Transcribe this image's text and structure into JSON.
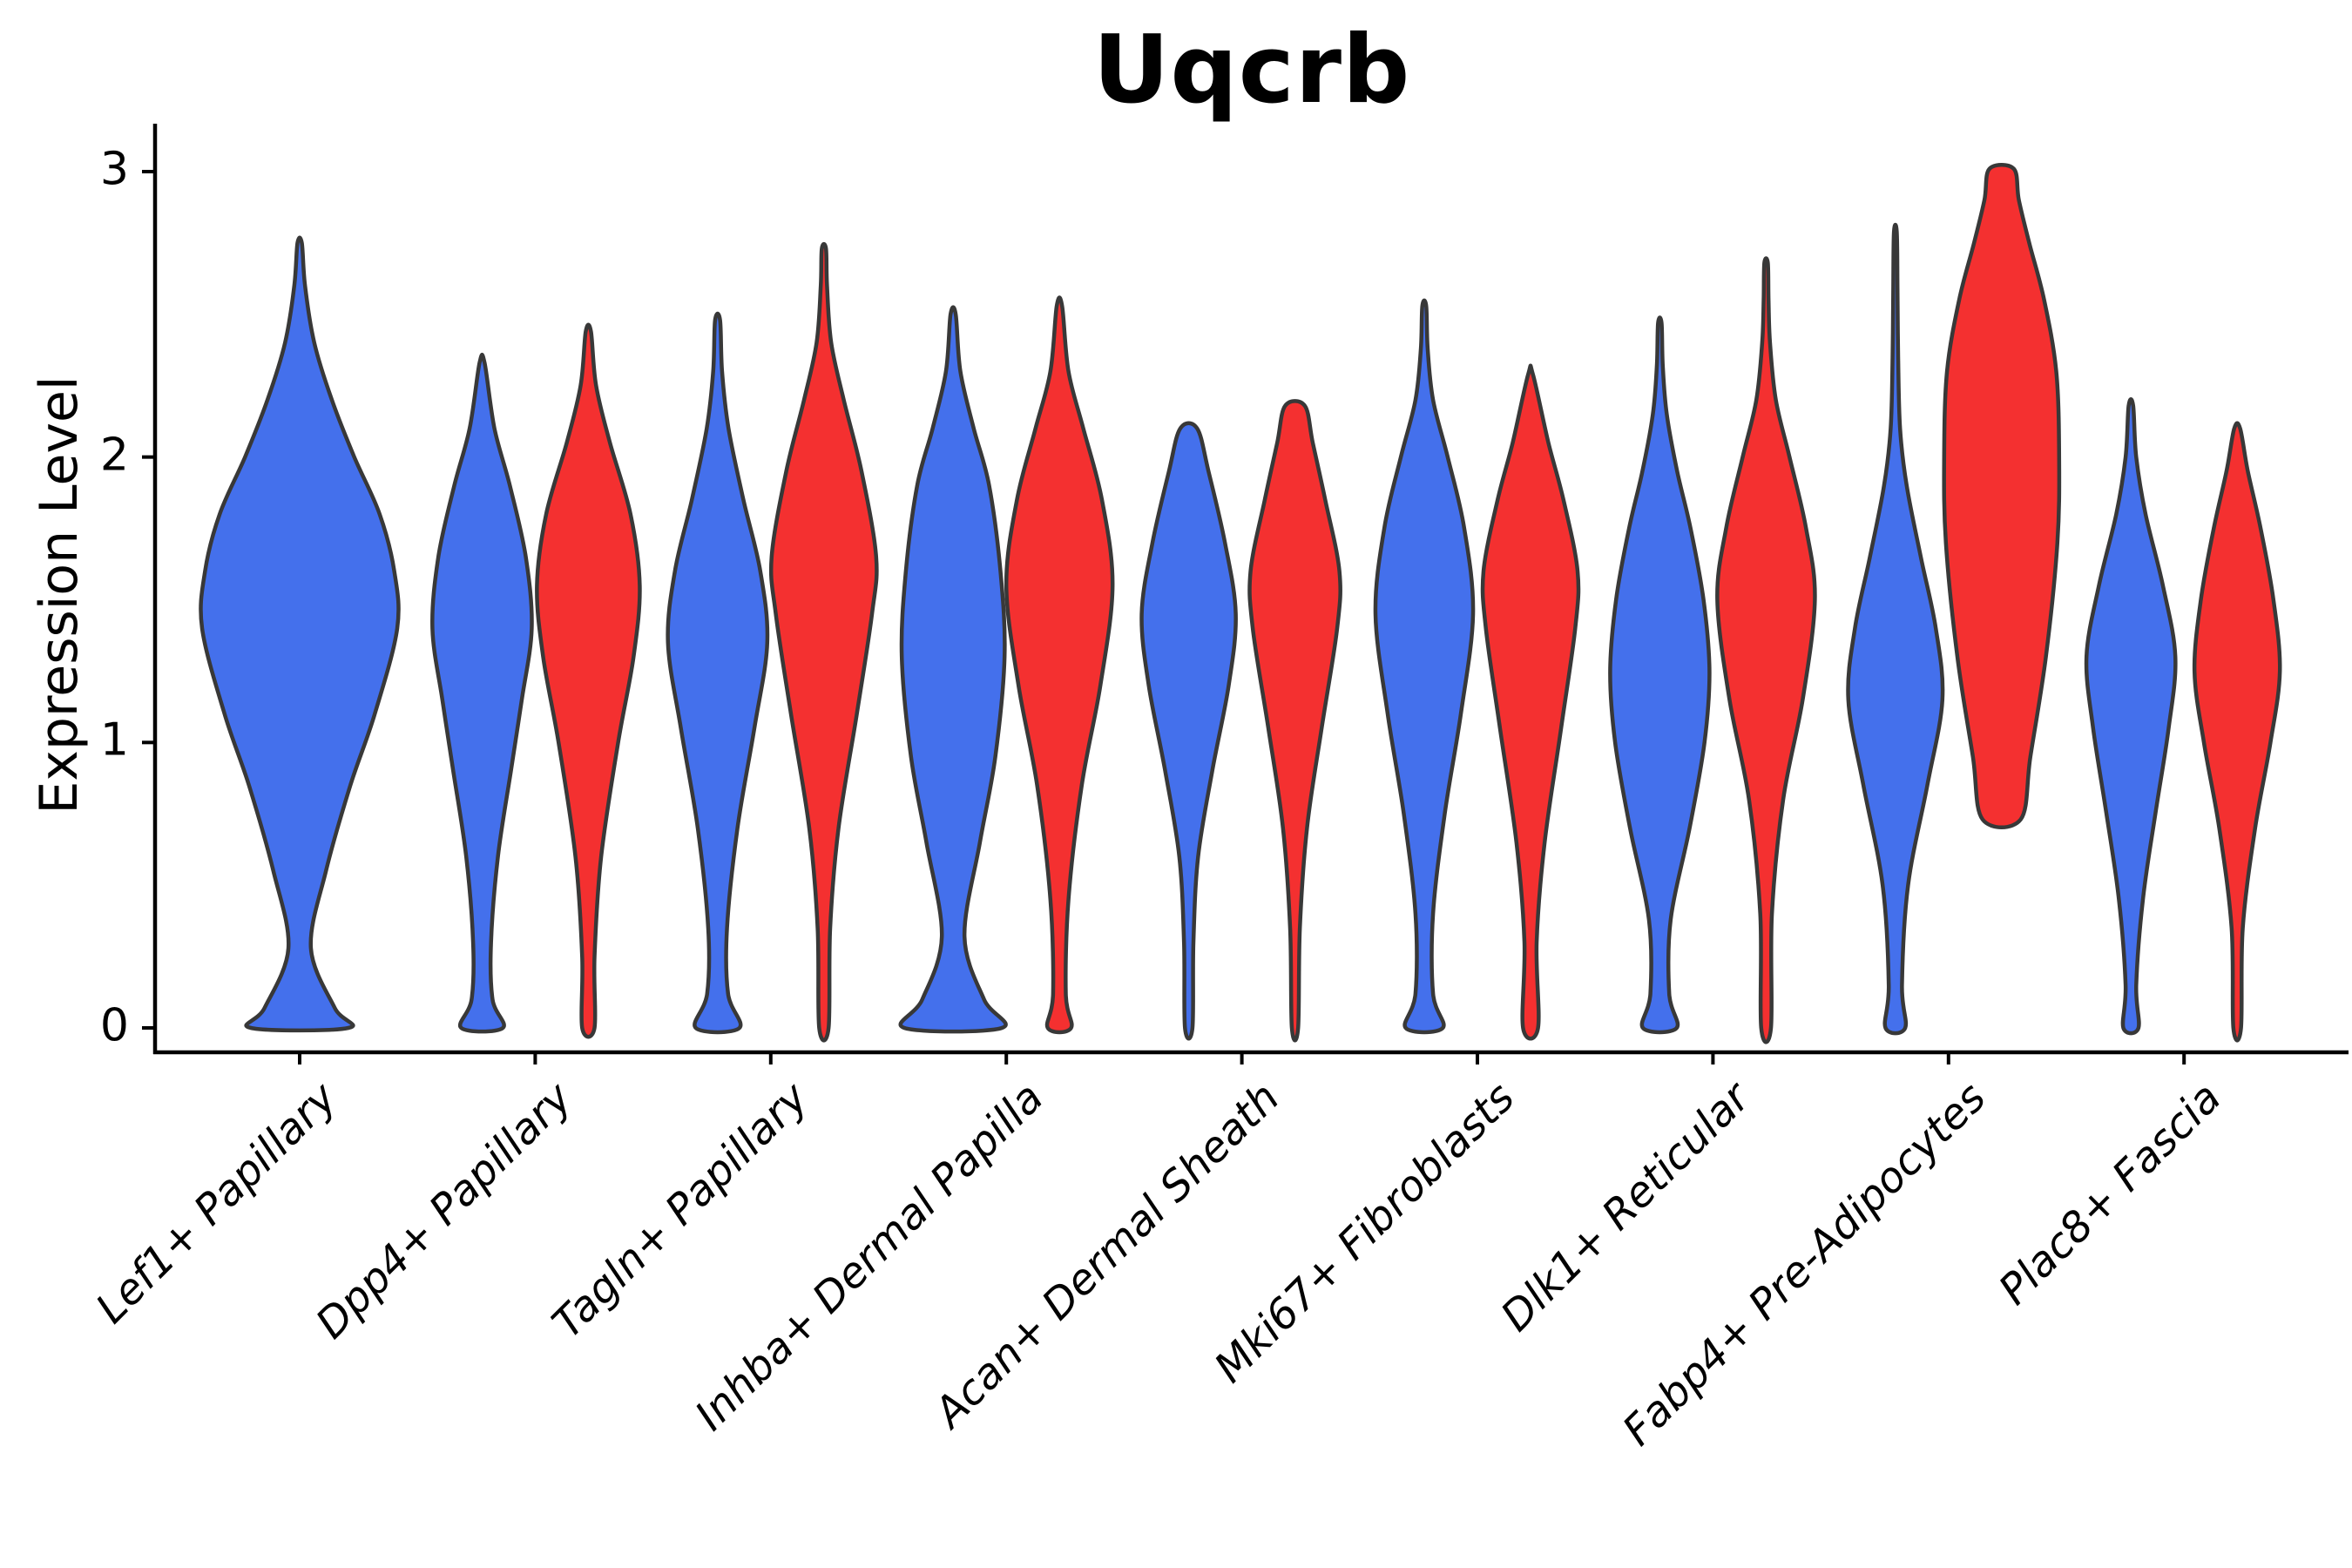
{
  "chart_data": {
    "type": "violin",
    "title": "Uqcrb",
    "ylabel": "Expression Level",
    "xlabel": "",
    "ylim": [
      0,
      3.07
    ],
    "yticks": [
      "0",
      "1",
      "2",
      "3"
    ],
    "ytick_values": [
      0,
      1,
      2,
      3
    ],
    "grid": false,
    "legend": "none",
    "categories": [
      "Lef1+ Papillary",
      "Dpp4+ Papillary",
      "Tagln+ Papillary",
      "Inhba+ Dermal Papilla",
      "Acan+ Dermal Sheath",
      "Mki67+ Fibroblasts",
      "Dlk1+ Reticular",
      "Fabp4+ Pre-Adipocytes",
      "Plac8+ Fascia"
    ],
    "colors": {
      "blue": "#4470EC",
      "red": "#F43030",
      "outline": "#383838",
      "axis": "#000000"
    },
    "violins": [
      {
        "category": "Lef1+ Papillary",
        "group": 0,
        "side": "center",
        "color": "blue",
        "max_halfwidth": 112,
        "profile": [
          [
            0,
            0.5
          ],
          [
            0.07,
            0.36
          ],
          [
            0.28,
            0.115
          ],
          [
            0.55,
            0.27
          ],
          [
            0.85,
            0.52
          ],
          [
            1.1,
            0.77
          ],
          [
            1.4,
            1.0
          ],
          [
            1.6,
            0.97
          ],
          [
            1.8,
            0.82
          ],
          [
            2.0,
            0.56
          ],
          [
            2.2,
            0.33
          ],
          [
            2.4,
            0.15
          ],
          [
            2.6,
            0.055
          ],
          [
            2.75,
            0.022
          ]
        ]
      },
      {
        "category": "Dpp4+ Papillary",
        "group": 1,
        "side": "left",
        "color": "blue",
        "max_halfwidth": 57,
        "profile": [
          [
            0,
            0.42
          ],
          [
            0.1,
            0.21
          ],
          [
            0.3,
            0.18
          ],
          [
            0.6,
            0.32
          ],
          [
            0.9,
            0.58
          ],
          [
            1.15,
            0.8
          ],
          [
            1.4,
            1.0
          ],
          [
            1.65,
            0.88
          ],
          [
            1.9,
            0.56
          ],
          [
            2.1,
            0.25
          ],
          [
            2.33,
            0.05
          ]
        ]
      },
      {
        "category": "Dpp4+ Papillary",
        "group": 1,
        "side": "right",
        "color": "red",
        "max_halfwidth": 59,
        "profile": [
          [
            0,
            0.12
          ],
          [
            0.25,
            0.12
          ],
          [
            0.6,
            0.25
          ],
          [
            1.0,
            0.58
          ],
          [
            1.3,
            0.88
          ],
          [
            1.55,
            1.0
          ],
          [
            1.8,
            0.82
          ],
          [
            2.05,
            0.42
          ],
          [
            2.25,
            0.15
          ],
          [
            2.44,
            0.05
          ]
        ]
      },
      {
        "category": "Tagln+ Papillary",
        "group": 2,
        "side": "left",
        "color": "blue",
        "max_halfwidth": 57,
        "profile": [
          [
            0,
            0.44
          ],
          [
            0.12,
            0.21
          ],
          [
            0.35,
            0.19
          ],
          [
            0.7,
            0.4
          ],
          [
            1.05,
            0.74
          ],
          [
            1.35,
            1.0
          ],
          [
            1.6,
            0.86
          ],
          [
            1.85,
            0.52
          ],
          [
            2.1,
            0.22
          ],
          [
            2.3,
            0.09
          ],
          [
            2.48,
            0.05
          ]
        ]
      },
      {
        "category": "Tagln+ Papillary",
        "group": 2,
        "side": "right",
        "color": "red",
        "max_halfwidth": 60,
        "profile": [
          [
            0,
            0.09
          ],
          [
            0.35,
            0.12
          ],
          [
            0.7,
            0.28
          ],
          [
            1.1,
            0.63
          ],
          [
            1.45,
            0.92
          ],
          [
            1.65,
            1.0
          ],
          [
            1.95,
            0.72
          ],
          [
            2.2,
            0.38
          ],
          [
            2.4,
            0.14
          ],
          [
            2.6,
            0.06
          ],
          [
            2.73,
            0.04
          ]
        ]
      },
      {
        "category": "Inhba+ Dermal Papilla",
        "group": 3,
        "side": "left",
        "color": "blue",
        "max_halfwidth": 59,
        "profile": [
          [
            0,
            0.95
          ],
          [
            0.1,
            0.6
          ],
          [
            0.32,
            0.22
          ],
          [
            0.65,
            0.52
          ],
          [
            0.95,
            0.82
          ],
          [
            1.3,
            1.0
          ],
          [
            1.6,
            0.92
          ],
          [
            1.9,
            0.7
          ],
          [
            2.1,
            0.4
          ],
          [
            2.3,
            0.14
          ],
          [
            2.5,
            0.05
          ]
        ]
      },
      {
        "category": "Inhba+ Dermal Papilla",
        "group": 3,
        "side": "right",
        "color": "red",
        "max_halfwidth": 61,
        "profile": [
          [
            0,
            0.22
          ],
          [
            0.12,
            0.12
          ],
          [
            0.45,
            0.17
          ],
          [
            0.85,
            0.42
          ],
          [
            1.2,
            0.77
          ],
          [
            1.55,
            1.0
          ],
          [
            1.85,
            0.8
          ],
          [
            2.1,
            0.45
          ],
          [
            2.3,
            0.17
          ],
          [
            2.53,
            0.05
          ]
        ]
      },
      {
        "category": "Acan+ Dermal Sheath",
        "group": 4,
        "side": "left",
        "color": "blue",
        "max_halfwidth": 54,
        "profile": [
          [
            0,
            0.08
          ],
          [
            0.3,
            0.1
          ],
          [
            0.6,
            0.2
          ],
          [
            0.9,
            0.5
          ],
          [
            1.2,
            0.85
          ],
          [
            1.45,
            1.0
          ],
          [
            1.7,
            0.77
          ],
          [
            1.95,
            0.42
          ],
          [
            2.1,
            0.18
          ]
        ]
      },
      {
        "category": "Acan+ Dermal Sheath",
        "group": 4,
        "side": "right",
        "color": "red",
        "max_halfwidth": 51,
        "profile": [
          [
            0,
            0.07
          ],
          [
            0.35,
            0.11
          ],
          [
            0.7,
            0.27
          ],
          [
            1.05,
            0.6
          ],
          [
            1.4,
            0.95
          ],
          [
            1.6,
            1.0
          ],
          [
            1.85,
            0.68
          ],
          [
            2.05,
            0.4
          ],
          [
            2.18,
            0.22
          ]
        ]
      },
      {
        "category": "Mki67+ Fibroblasts",
        "group": 5,
        "side": "left",
        "color": "blue",
        "max_halfwidth": 56,
        "profile": [
          [
            0,
            0.38
          ],
          [
            0.12,
            0.18
          ],
          [
            0.4,
            0.18
          ],
          [
            0.75,
            0.42
          ],
          [
            1.1,
            0.75
          ],
          [
            1.45,
            1.0
          ],
          [
            1.75,
            0.82
          ],
          [
            2.0,
            0.48
          ],
          [
            2.2,
            0.18
          ],
          [
            2.38,
            0.07
          ],
          [
            2.53,
            0.04
          ]
        ]
      },
      {
        "category": "Mki67+ Fibroblasts",
        "group": 5,
        "side": "right",
        "color": "red",
        "max_halfwidth": 54,
        "profile": [
          [
            0,
            0.16
          ],
          [
            0.3,
            0.13
          ],
          [
            0.65,
            0.3
          ],
          [
            1.05,
            0.65
          ],
          [
            1.4,
            0.95
          ],
          [
            1.6,
            1.0
          ],
          [
            1.85,
            0.7
          ],
          [
            2.05,
            0.38
          ],
          [
            2.29,
            0.05
          ]
        ]
      },
      {
        "category": "Dlk1+ Reticular",
        "group": 6,
        "side": "left",
        "color": "blue",
        "max_halfwidth": 57,
        "profile": [
          [
            0,
            0.34
          ],
          [
            0.12,
            0.19
          ],
          [
            0.38,
            0.22
          ],
          [
            0.7,
            0.6
          ],
          [
            1.0,
            0.9
          ],
          [
            1.25,
            1.0
          ],
          [
            1.5,
            0.88
          ],
          [
            1.75,
            0.62
          ],
          [
            1.95,
            0.35
          ],
          [
            2.15,
            0.14
          ],
          [
            2.32,
            0.06
          ],
          [
            2.47,
            0.035
          ]
        ]
      },
      {
        "category": "Dlk1+ Reticular",
        "group": 6,
        "side": "right",
        "color": "red",
        "max_halfwidth": 56,
        "profile": [
          [
            0,
            0.1
          ],
          [
            0.4,
            0.12
          ],
          [
            0.8,
            0.35
          ],
          [
            1.15,
            0.75
          ],
          [
            1.5,
            1.0
          ],
          [
            1.75,
            0.82
          ],
          [
            2.0,
            0.48
          ],
          [
            2.2,
            0.2
          ],
          [
            2.4,
            0.08
          ],
          [
            2.55,
            0.05
          ],
          [
            2.68,
            0.035
          ]
        ]
      },
      {
        "category": "Fabp4+ Pre-Adipocytes",
        "group": 7,
        "side": "left",
        "color": "blue",
        "max_halfwidth": 54,
        "profile": [
          [
            0,
            0.21
          ],
          [
            0.15,
            0.14
          ],
          [
            0.5,
            0.27
          ],
          [
            0.85,
            0.68
          ],
          [
            1.15,
            1.0
          ],
          [
            1.4,
            0.86
          ],
          [
            1.65,
            0.54
          ],
          [
            1.9,
            0.24
          ],
          [
            2.1,
            0.1
          ],
          [
            2.35,
            0.06
          ],
          [
            2.6,
            0.045
          ],
          [
            2.79,
            0.03
          ]
        ]
      },
      {
        "category": "Fabp4+ Pre-Adipocytes",
        "group": 7,
        "side": "right",
        "color": "red",
        "max_halfwidth": 66,
        "profile": [
          [
            0.73,
            0.33
          ],
          [
            0.95,
            0.5
          ],
          [
            1.3,
            0.77
          ],
          [
            1.7,
            0.97
          ],
          [
            2.0,
            1.0
          ],
          [
            2.3,
            0.95
          ],
          [
            2.55,
            0.74
          ],
          [
            2.75,
            0.48
          ],
          [
            2.9,
            0.3
          ],
          [
            3.01,
            0.21
          ]
        ]
      },
      {
        "category": "Plac8+ Fascia",
        "group": 8,
        "side": "left",
        "color": "blue",
        "max_halfwidth": 51,
        "profile": [
          [
            0,
            0.17
          ],
          [
            0.15,
            0.12
          ],
          [
            0.45,
            0.27
          ],
          [
            0.75,
            0.55
          ],
          [
            1.05,
            0.85
          ],
          [
            1.3,
            1.0
          ],
          [
            1.55,
            0.72
          ],
          [
            1.8,
            0.33
          ],
          [
            2.0,
            0.12
          ],
          [
            2.18,
            0.05
          ]
        ]
      },
      {
        "category": "Plac8+ Fascia",
        "group": 8,
        "side": "right",
        "color": "red",
        "max_halfwidth": 49,
        "profile": [
          [
            0,
            0.09
          ],
          [
            0.35,
            0.13
          ],
          [
            0.7,
            0.42
          ],
          [
            1.0,
            0.78
          ],
          [
            1.25,
            1.0
          ],
          [
            1.5,
            0.85
          ],
          [
            1.75,
            0.55
          ],
          [
            1.95,
            0.25
          ],
          [
            2.1,
            0.07
          ]
        ]
      }
    ]
  }
}
